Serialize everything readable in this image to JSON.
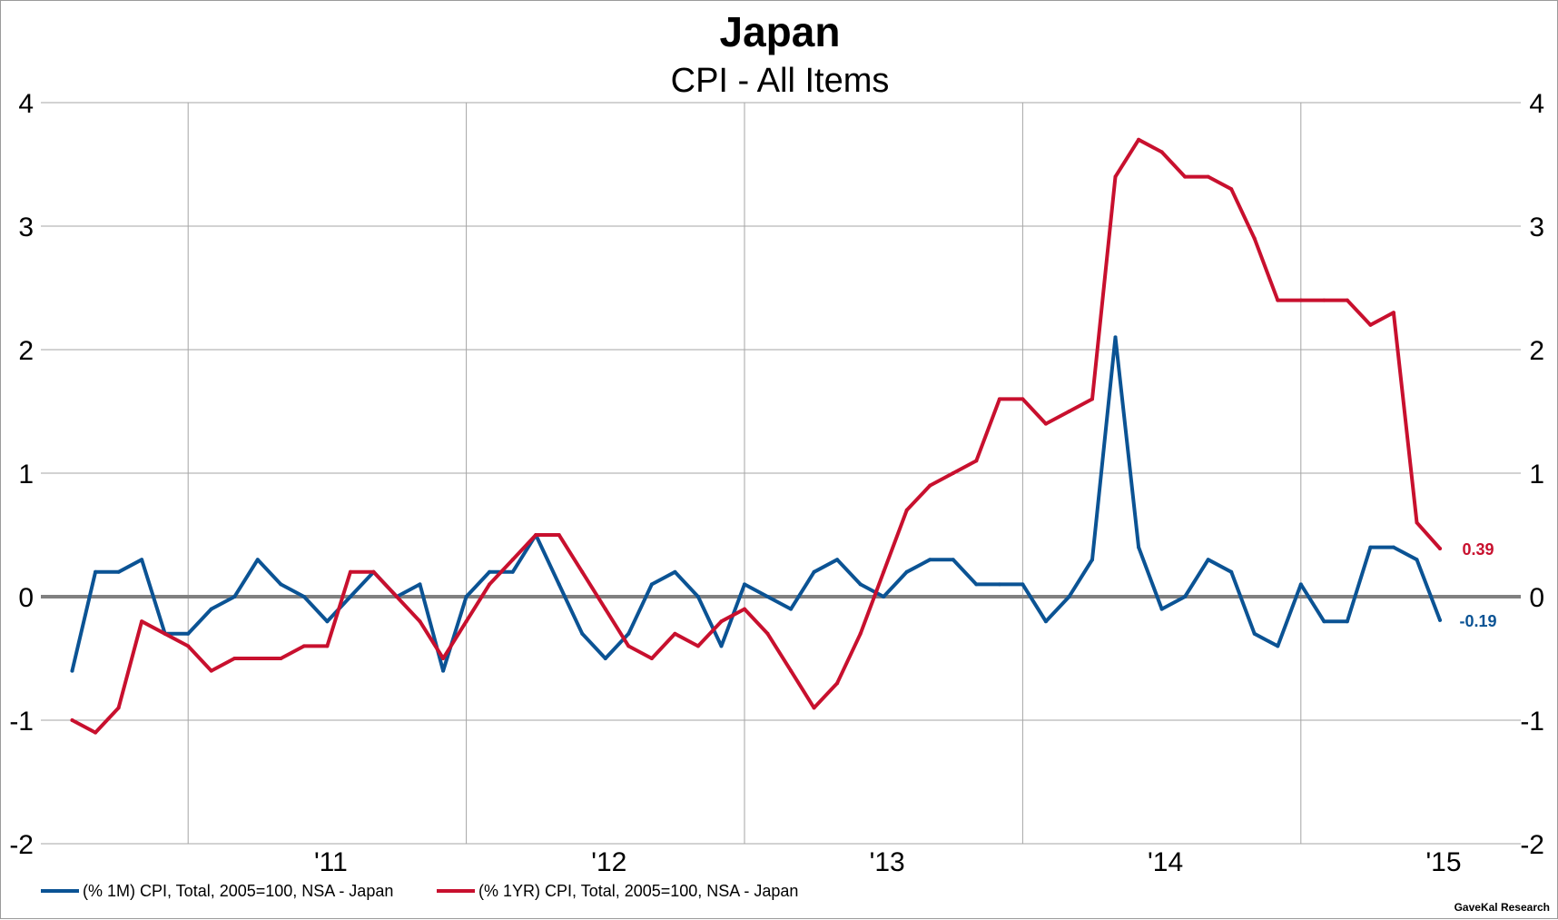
{
  "chart_data": {
    "type": "line",
    "title": "Japan",
    "subtitle": "CPI - All Items",
    "source": "GaveKal Research",
    "ylim": [
      -2,
      4
    ],
    "y_ticks": [
      "-2",
      "-1",
      "0",
      "1",
      "2",
      "3",
      "4"
    ],
    "y_tick_values": [
      -2,
      -1,
      0,
      1,
      2,
      3,
      4
    ],
    "x_start": "2010-01",
    "x_end": "2015-01",
    "x_ticks": [
      {
        "label": "'11",
        "date": "2011-01"
      },
      {
        "label": "'12",
        "date": "2012-01"
      },
      {
        "label": "'13",
        "date": "2013-01"
      },
      {
        "label": "'14",
        "date": "2014-01"
      },
      {
        "label": "'15",
        "date": "2015-01"
      }
    ],
    "vertical_grid_dates": [
      "2010-07",
      "2011-07",
      "2012-07",
      "2013-07",
      "2014-07"
    ],
    "grid": true,
    "legend_position": "bottom-left",
    "x": [
      "2010-02",
      "2010-03",
      "2010-04",
      "2010-05",
      "2010-06",
      "2010-07",
      "2010-08",
      "2010-09",
      "2010-10",
      "2010-11",
      "2010-12",
      "2011-01",
      "2011-02",
      "2011-03",
      "2011-04",
      "2011-05",
      "2011-06",
      "2011-07",
      "2011-08",
      "2011-09",
      "2011-10",
      "2011-11",
      "2011-12",
      "2012-01",
      "2012-02",
      "2012-03",
      "2012-04",
      "2012-05",
      "2012-06",
      "2012-07",
      "2012-08",
      "2012-09",
      "2012-10",
      "2012-11",
      "2012-12",
      "2013-01",
      "2013-02",
      "2013-03",
      "2013-04",
      "2013-05",
      "2013-06",
      "2013-07",
      "2013-08",
      "2013-09",
      "2013-10",
      "2013-11",
      "2013-12",
      "2014-01",
      "2014-02",
      "2014-03",
      "2014-04",
      "2014-05",
      "2014-06",
      "2014-07",
      "2014-08",
      "2014-09",
      "2014-10",
      "2014-11",
      "2014-12",
      "2015-01"
    ],
    "series": [
      {
        "name": "(% 1M) CPI, Total, 2005=100, NSA - Japan",
        "color": "#0b5394",
        "end_label": "-0.19",
        "values": [
          -0.6,
          0.2,
          0.2,
          0.3,
          -0.3,
          -0.3,
          -0.1,
          0.0,
          0.3,
          0.1,
          0.0,
          -0.2,
          0.0,
          0.2,
          0.0,
          0.1,
          -0.6,
          0.0,
          0.2,
          0.2,
          0.5,
          0.1,
          -0.3,
          -0.5,
          -0.3,
          0.1,
          0.2,
          0.0,
          -0.4,
          0.1,
          0.0,
          -0.1,
          0.2,
          0.3,
          0.1,
          0.0,
          0.2,
          0.3,
          0.3,
          0.1,
          0.1,
          0.1,
          -0.2,
          0.0,
          0.3,
          2.1,
          0.4,
          -0.1,
          0.0,
          0.3,
          0.2,
          -0.3,
          -0.4,
          0.1,
          -0.2,
          -0.2,
          0.4,
          0.4,
          0.3,
          -0.19
        ]
      },
      {
        "name": "(% 1YR) CPI, Total, 2005=100, NSA - Japan",
        "color": "#c8102e",
        "end_label": "0.39",
        "values": [
          -1.0,
          -1.1,
          -0.9,
          -0.2,
          -0.3,
          -0.4,
          -0.6,
          -0.5,
          -0.5,
          -0.5,
          -0.4,
          -0.4,
          0.2,
          0.2,
          0.0,
          -0.2,
          -0.5,
          -0.2,
          0.1,
          0.3,
          0.5,
          0.5,
          0.2,
          -0.1,
          -0.4,
          -0.5,
          -0.3,
          -0.4,
          -0.2,
          -0.1,
          -0.3,
          -0.6,
          -0.9,
          -0.7,
          -0.3,
          0.2,
          0.7,
          0.9,
          1.0,
          1.1,
          1.6,
          1.6,
          1.4,
          1.5,
          1.6,
          3.4,
          3.7,
          3.6,
          3.4,
          3.4,
          3.3,
          2.9,
          2.4,
          2.4,
          2.4,
          2.4,
          2.2,
          2.3,
          0.6,
          0.39
        ]
      }
    ]
  }
}
